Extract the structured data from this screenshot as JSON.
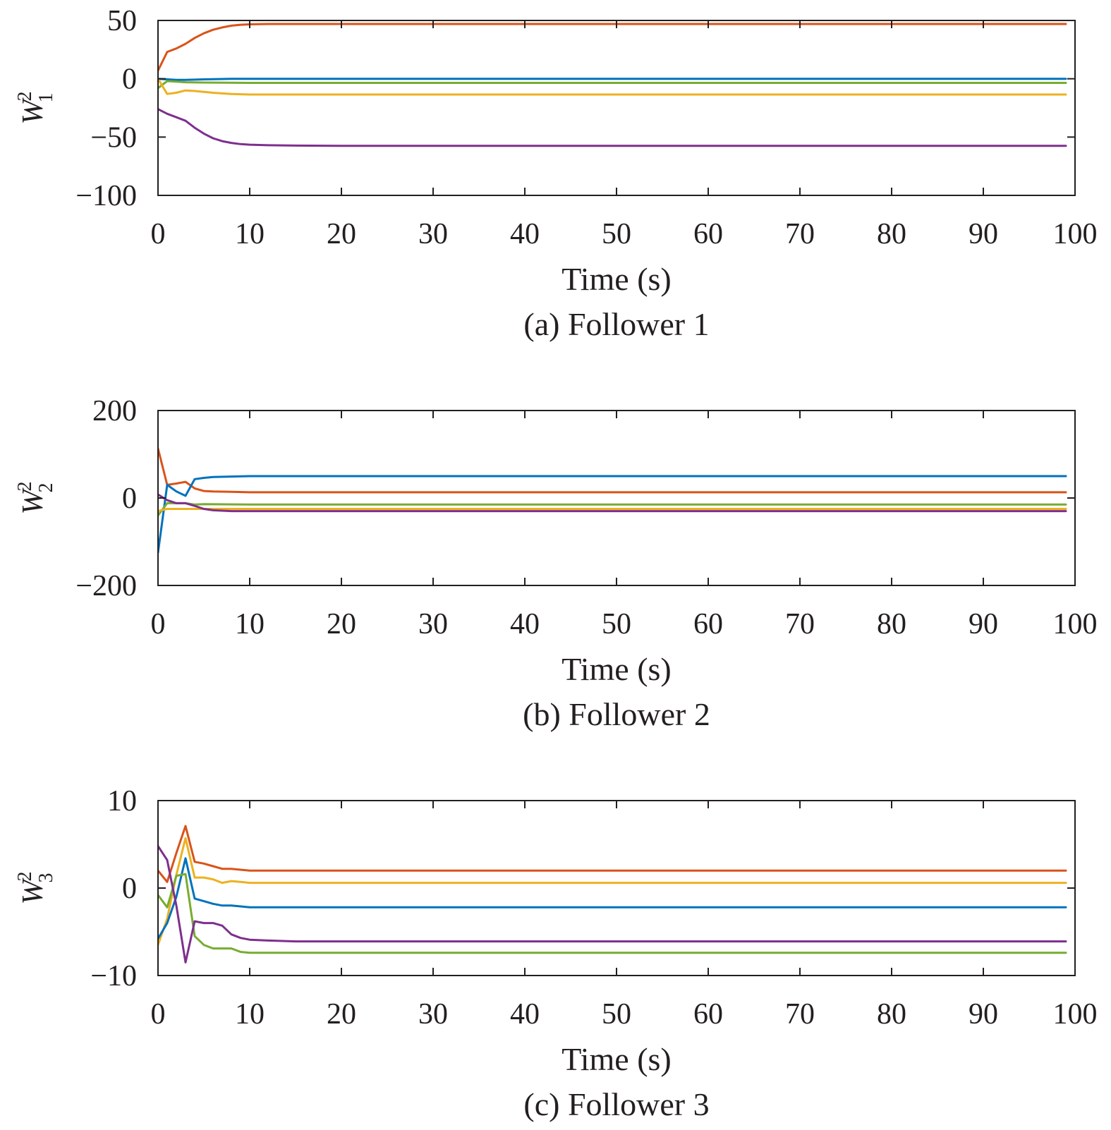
{
  "chart_data": [
    {
      "type": "line",
      "caption": "(a) Follower 1",
      "xlabel": "Time (s)",
      "ylabel": {
        "base": "W",
        "sup": "2",
        "sub": "1"
      },
      "xlim": [
        0,
        100
      ],
      "ylim": [
        -100,
        50
      ],
      "xticks": [
        0,
        10,
        20,
        30,
        40,
        50,
        60,
        70,
        80,
        90,
        100
      ],
      "yticks": [
        -100,
        -50,
        0,
        50
      ],
      "ytick_labels": [
        "−100",
        "−50",
        "0",
        "50"
      ],
      "grid": false,
      "series": [
        {
          "color": "#d95319",
          "x": [
            0,
            1,
            2,
            3,
            4,
            5,
            6,
            7,
            8,
            9,
            10,
            12,
            15,
            20,
            40,
            60,
            80,
            99
          ],
          "y": [
            7,
            23,
            26,
            30,
            35,
            39,
            42,
            44,
            45.5,
            46.3,
            46.7,
            47,
            47,
            47,
            47,
            47,
            47,
            47
          ]
        },
        {
          "color": "#0072bd",
          "x": [
            0,
            1,
            2,
            3,
            5,
            8,
            10,
            20,
            50,
            99
          ],
          "y": [
            0,
            -0.5,
            -1,
            -1,
            -0.5,
            0,
            0,
            0,
            0,
            0
          ]
        },
        {
          "color": "#77ac30",
          "x": [
            0,
            1,
            2,
            3,
            5,
            10,
            20,
            50,
            99
          ],
          "y": [
            -8,
            -2,
            -2.5,
            -3,
            -3.2,
            -3.5,
            -3.5,
            -3.5,
            -3.5
          ]
        },
        {
          "color": "#edb120",
          "x": [
            0,
            1,
            2,
            3,
            4,
            6,
            8,
            10,
            20,
            50,
            99
          ],
          "y": [
            0,
            -13,
            -12,
            -10,
            -10.5,
            -12,
            -13,
            -13.5,
            -13.5,
            -13.5,
            -13.5
          ]
        },
        {
          "color": "#7e2f8e",
          "x": [
            0,
            1,
            2,
            3,
            4,
            5,
            6,
            7,
            8,
            9,
            10,
            12,
            15,
            20,
            40,
            60,
            80,
            99
          ],
          "y": [
            -26,
            -30,
            -33,
            -36,
            -42,
            -47,
            -51,
            -53.5,
            -55,
            -56,
            -56.5,
            -57,
            -57.3,
            -57.5,
            -57.5,
            -57.5,
            -57.5,
            -57.5
          ]
        }
      ]
    },
    {
      "type": "line",
      "caption": "(b) Follower 2",
      "xlabel": "Time (s)",
      "ylabel": {
        "base": "W",
        "sup": "2",
        "sub": "2"
      },
      "xlim": [
        0,
        100
      ],
      "ylim": [
        -200,
        200
      ],
      "xticks": [
        0,
        10,
        20,
        30,
        40,
        50,
        60,
        70,
        80,
        90,
        100
      ],
      "yticks": [
        -200,
        0,
        200
      ],
      "ytick_labels": [
        "−200",
        "0",
        "200"
      ],
      "grid": false,
      "series": [
        {
          "color": "#d95319",
          "x": [
            0,
            1,
            2,
            3,
            4,
            5,
            6,
            8,
            10,
            20,
            50,
            99
          ],
          "y": [
            113,
            30,
            33,
            37,
            22,
            16,
            15,
            14,
            13,
            13,
            13,
            13
          ]
        },
        {
          "color": "#0072bd",
          "x": [
            0,
            1,
            2,
            3,
            4,
            5,
            6,
            8,
            10,
            15,
            20,
            50,
            99
          ],
          "y": [
            -125,
            30,
            15,
            5,
            43,
            46,
            48,
            49,
            50,
            50,
            50,
            50,
            50
          ]
        },
        {
          "color": "#77ac30",
          "x": [
            0,
            1,
            2,
            3,
            4,
            5,
            10,
            20,
            50,
            99
          ],
          "y": [
            -40,
            -12,
            -12,
            -12,
            -15,
            -14,
            -15,
            -15,
            -15,
            -15
          ]
        },
        {
          "color": "#edb120",
          "x": [
            0,
            1,
            2,
            3,
            5,
            10,
            20,
            50,
            99
          ],
          "y": [
            -30,
            -25,
            -25,
            -25,
            -25,
            -25,
            -25,
            -25,
            -25
          ]
        },
        {
          "color": "#7e2f8e",
          "x": [
            0,
            1,
            2,
            3,
            4,
            5,
            6,
            8,
            10,
            20,
            50,
            99
          ],
          "y": [
            8,
            -5,
            -12,
            -12,
            -18,
            -25,
            -28,
            -30,
            -30,
            -30,
            -30,
            -30
          ]
        }
      ]
    },
    {
      "type": "line",
      "caption": "(c) Follower 3",
      "xlabel": "Time (s)",
      "ylabel": {
        "base": "W",
        "sup": "2",
        "sub": "3"
      },
      "xlim": [
        0,
        100
      ],
      "ylim": [
        -10,
        10
      ],
      "xticks": [
        0,
        10,
        20,
        30,
        40,
        50,
        60,
        70,
        80,
        90,
        100
      ],
      "yticks": [
        -10,
        0,
        10
      ],
      "ytick_labels": [
        "−10",
        "0",
        "10"
      ],
      "grid": false,
      "series": [
        {
          "color": "#d95319",
          "x": [
            0,
            1,
            2,
            3,
            4,
            5,
            6,
            7,
            8,
            9,
            10,
            15,
            20,
            50,
            99
          ],
          "y": [
            2,
            0.7,
            4,
            7.1,
            3,
            2.8,
            2.5,
            2.2,
            2.2,
            2.1,
            2,
            2,
            2,
            2,
            2
          ]
        },
        {
          "color": "#edb120",
          "x": [
            0,
            1,
            2,
            3,
            4,
            5,
            6,
            7,
            8,
            9,
            10,
            15,
            20,
            50,
            99
          ],
          "y": [
            -6.5,
            -3.5,
            1.5,
            5.7,
            1.2,
            1.2,
            1,
            0.6,
            0.8,
            0.7,
            0.6,
            0.6,
            0.6,
            0.6,
            0.6
          ]
        },
        {
          "color": "#0072bd",
          "x": [
            0,
            1,
            2,
            3,
            4,
            5,
            6,
            7,
            8,
            9,
            10,
            15,
            20,
            50,
            99
          ],
          "y": [
            -5.8,
            -4,
            -1,
            3.4,
            -1.2,
            -1.5,
            -1.8,
            -2,
            -2,
            -2.1,
            -2.2,
            -2.2,
            -2.2,
            -2.2,
            -2.2
          ]
        },
        {
          "color": "#77ac30",
          "x": [
            0,
            1,
            2,
            3,
            4,
            5,
            6,
            7,
            8,
            9,
            10,
            15,
            20,
            50,
            99
          ],
          "y": [
            -0.8,
            -2.2,
            1.4,
            1.6,
            -5.5,
            -6.5,
            -6.9,
            -6.9,
            -6.9,
            -7.3,
            -7.4,
            -7.4,
            -7.4,
            -7.4,
            -7.4
          ]
        },
        {
          "color": "#7e2f8e",
          "x": [
            0,
            1,
            2,
            3,
            4,
            5,
            6,
            7,
            8,
            9,
            10,
            12,
            15,
            20,
            50,
            99
          ],
          "y": [
            4.8,
            3.2,
            -2,
            -8.5,
            -3.8,
            -4,
            -4,
            -4.3,
            -5.3,
            -5.7,
            -5.9,
            -6,
            -6.1,
            -6.1,
            -6.1,
            -6.1
          ]
        }
      ]
    }
  ]
}
